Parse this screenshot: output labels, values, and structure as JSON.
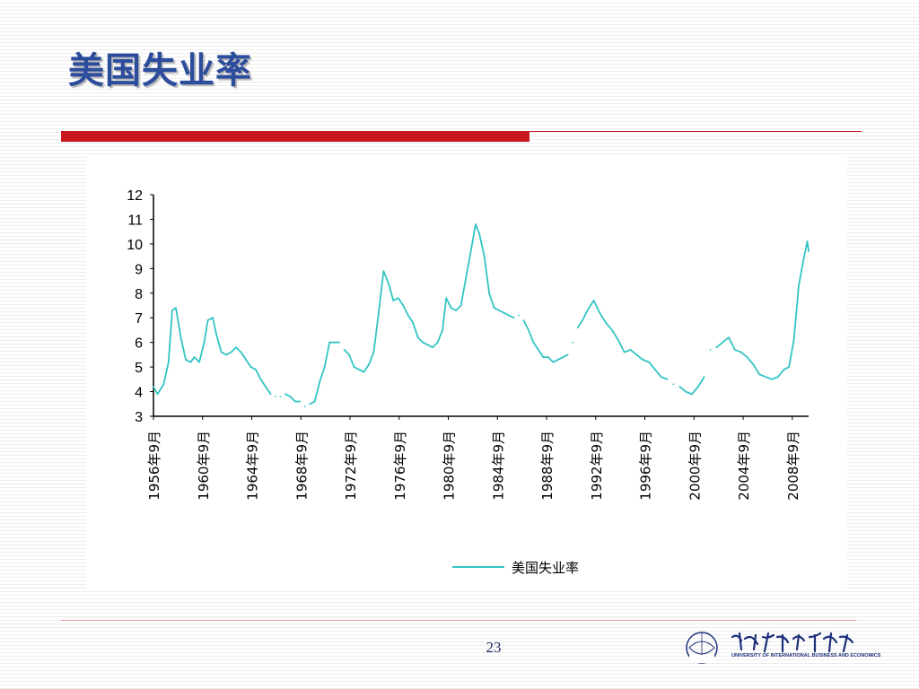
{
  "slide": {
    "title": "美国失业率",
    "page_number": "23"
  },
  "logo": {
    "emblem_text": "UIBE",
    "name_cn": "对外经济贸易大学",
    "name_en": "UNIVERSITY OF INTERNATIONAL BUSINESS AND ECONOMICS"
  },
  "colors": {
    "title": "#2c4c9c",
    "accent_red": "#c8171e",
    "series_line": "#33c4c4",
    "logo": "#1c2f7a"
  },
  "chart_data": {
    "type": "line",
    "title": "",
    "xlabel": "",
    "ylabel": "",
    "ylim": [
      3,
      12
    ],
    "yticks": [
      "3",
      "4",
      "5",
      "6",
      "7",
      "8",
      "9",
      "10",
      "11",
      "12"
    ],
    "xlim": [
      1956.67,
      2010.0
    ],
    "categories": [
      "1956年9月",
      "1960年9月",
      "1964年9月",
      "1968年9月",
      "1972年9月",
      "1976年9月",
      "1980年9月",
      "1984年9月",
      "1988年9月",
      "1992年9月",
      "1996年9月",
      "2000年9月",
      "2004年9月",
      "2008年9月"
    ],
    "category_years": [
      1956.67,
      1960.67,
      1964.67,
      1968.67,
      1972.67,
      1976.67,
      1980.67,
      1984.67,
      1988.67,
      1992.67,
      1996.67,
      2000.67,
      2004.67,
      2008.67
    ],
    "legend": {
      "position": "bottom",
      "entries": [
        "美国失业率"
      ]
    },
    "grid": false,
    "series": [
      {
        "name": "美国失业率",
        "color": "#33c4c4",
        "x": [
          1956.67,
          1957.0,
          1957.5,
          1957.9,
          1958.2,
          1958.5,
          1958.9,
          1959.3,
          1959.7,
          1960.0,
          1960.4,
          1960.8,
          1961.1,
          1961.5,
          1961.8,
          1962.2,
          1962.6,
          1963.0,
          1963.4,
          1963.8,
          1964.2,
          1964.6,
          1965.0,
          1965.4,
          1965.8,
          1966.2,
          1966.6,
          1967.0,
          1967.4,
          1967.8,
          1968.2,
          1968.6,
          1969.0,
          1969.4,
          1969.8,
          1970.2,
          1970.6,
          1971.0,
          1971.4,
          1971.8,
          1972.2,
          1972.6,
          1973.0,
          1973.4,
          1973.8,
          1974.2,
          1974.6,
          1975.0,
          1975.4,
          1975.8,
          1976.2,
          1976.6,
          1977.0,
          1977.4,
          1977.8,
          1978.2,
          1978.6,
          1979.0,
          1979.4,
          1979.8,
          1980.2,
          1980.5,
          1980.9,
          1981.3,
          1981.7,
          1982.1,
          1982.5,
          1982.9,
          1983.2,
          1983.6,
          1984.0,
          1984.4,
          1984.8,
          1985.2,
          1985.6,
          1986.0,
          1986.4,
          1986.8,
          1987.2,
          1987.6,
          1988.0,
          1988.4,
          1988.8,
          1989.2,
          1989.6,
          1990.0,
          1990.4,
          1990.8,
          1991.2,
          1991.6,
          1992.0,
          1992.5,
          1993.0,
          1993.5,
          1994.0,
          1994.5,
          1995.0,
          1995.5,
          1996.0,
          1996.5,
          1997.0,
          1997.5,
          1998.0,
          1998.5,
          1999.0,
          1999.5,
          2000.0,
          2000.5,
          2001.0,
          2001.5,
          2002.0,
          2002.5,
          2003.0,
          2003.5,
          2004.0,
          2004.5,
          2005.0,
          2005.5,
          2006.0,
          2006.5,
          2007.0,
          2007.5,
          2008.0,
          2008.4,
          2008.8,
          2009.2,
          2009.6,
          2009.9,
          2010.0
        ],
        "values": [
          4.2,
          3.9,
          4.3,
          5.2,
          7.3,
          7.4,
          6.2,
          5.3,
          5.2,
          5.4,
          5.2,
          6.0,
          6.9,
          7.0,
          6.3,
          5.6,
          5.5,
          5.6,
          5.8,
          5.6,
          5.3,
          5.0,
          4.9,
          4.5,
          4.2,
          3.9,
          3.8,
          3.8,
          3.9,
          3.8,
          3.6,
          3.6,
          3.4,
          3.5,
          3.6,
          4.4,
          5.0,
          6.0,
          6.0,
          6.0,
          5.7,
          5.5,
          5.0,
          4.9,
          4.8,
          5.1,
          5.6,
          7.2,
          8.9,
          8.4,
          7.7,
          7.8,
          7.5,
          7.1,
          6.8,
          6.2,
          6.0,
          5.9,
          5.8,
          6.0,
          6.5,
          7.8,
          7.4,
          7.3,
          7.5,
          8.6,
          9.7,
          10.8,
          10.4,
          9.5,
          8.0,
          7.4,
          7.3,
          7.2,
          7.1,
          7.0,
          7.1,
          6.9,
          6.5,
          6.0,
          5.7,
          5.4,
          5.4,
          5.2,
          5.3,
          5.4,
          5.5,
          6.0,
          6.6,
          6.9,
          7.3,
          7.7,
          7.2,
          6.8,
          6.5,
          6.1,
          5.6,
          5.7,
          5.5,
          5.3,
          5.2,
          4.9,
          4.6,
          4.5,
          4.3,
          4.2,
          4.0,
          3.9,
          4.2,
          4.6,
          5.7,
          5.8,
          6.0,
          6.2,
          5.7,
          5.6,
          5.4,
          5.1,
          4.7,
          4.6,
          4.5,
          4.6,
          4.9,
          5.0,
          6.1,
          8.3,
          9.4,
          10.1,
          9.7
        ],
        "gaps": [
          [
            1966.4,
            1967.2
          ],
          [
            1968.9,
            1969.3
          ],
          [
            1971.8,
            1972.2
          ],
          [
            1986.3,
            1986.7
          ],
          [
            1990.6,
            1991.2
          ],
          [
            1998.6,
            1999.4
          ],
          [
            2001.6,
            2002.2
          ]
        ]
      }
    ]
  }
}
